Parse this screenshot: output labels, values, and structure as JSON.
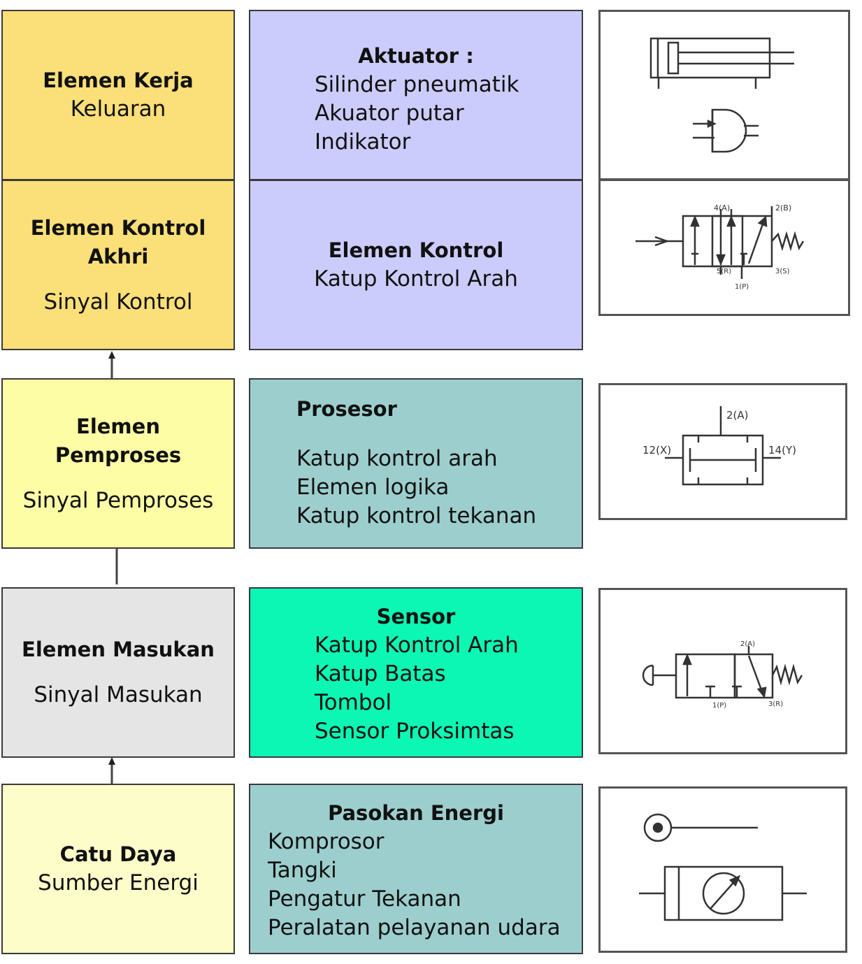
{
  "colors": {
    "orange": "#fbdf78",
    "lavender": "#ccccfc",
    "light_yellow": "#fdfda6",
    "teal": "#9dcece",
    "green": "#0bf7b3",
    "gray": "#e5e5e5",
    "cream": "#fdfdc9"
  },
  "rows": {
    "output": {
      "left": {
        "title": "Elemen Kerja",
        "subtitle": "Keluaran"
      },
      "mid": {
        "title": "Aktuator :",
        "lines": [
          "Silinder pneumatik",
          "Akuator putar",
          "Indikator"
        ]
      }
    },
    "final_control": {
      "left": {
        "title_1": "Elemen Kontrol",
        "title_2": "Akhri",
        "subtitle": "Sinyal Kontrol"
      },
      "mid": {
        "title": "Elemen Kontrol",
        "lines": [
          "Katup Kontrol Arah"
        ]
      }
    },
    "processor": {
      "left": {
        "title_1": "Elemen",
        "title_2": "Pemproses",
        "subtitle": "Sinyal Pemproses"
      },
      "mid": {
        "title": "Prosesor",
        "lines": [
          "Katup kontrol arah",
          "Elemen logika",
          "Katup kontrol tekanan"
        ]
      }
    },
    "input": {
      "left": {
        "title": "Elemen Masukan",
        "subtitle": "Sinyal Masukan"
      },
      "mid": {
        "title": "Sensor",
        "lines": [
          "Katup Kontrol Arah",
          "Katup Batas",
          "Tombol",
          "Sensor Proksimtas"
        ]
      }
    },
    "supply": {
      "left": {
        "title": "Catu Daya",
        "subtitle": "Sumber Energi"
      },
      "mid": {
        "title": "Pasokan Energi",
        "lines": [
          "Komprosor",
          "Tangki",
          "Pengatur Tekanan",
          "Peralatan pelayanan udara"
        ]
      }
    }
  },
  "symbol_labels": {
    "valve_5_2": {
      "a": "4(A)",
      "b": "2(B)",
      "r": "5(R)",
      "s": "3(S)",
      "p": "1(P)"
    },
    "logic": {
      "a": "2(A)",
      "x": "12(X)",
      "y": "14(Y)"
    },
    "valve_3_2": {
      "a": "2(A)",
      "p": "1(P)",
      "r": "3(R)"
    }
  }
}
